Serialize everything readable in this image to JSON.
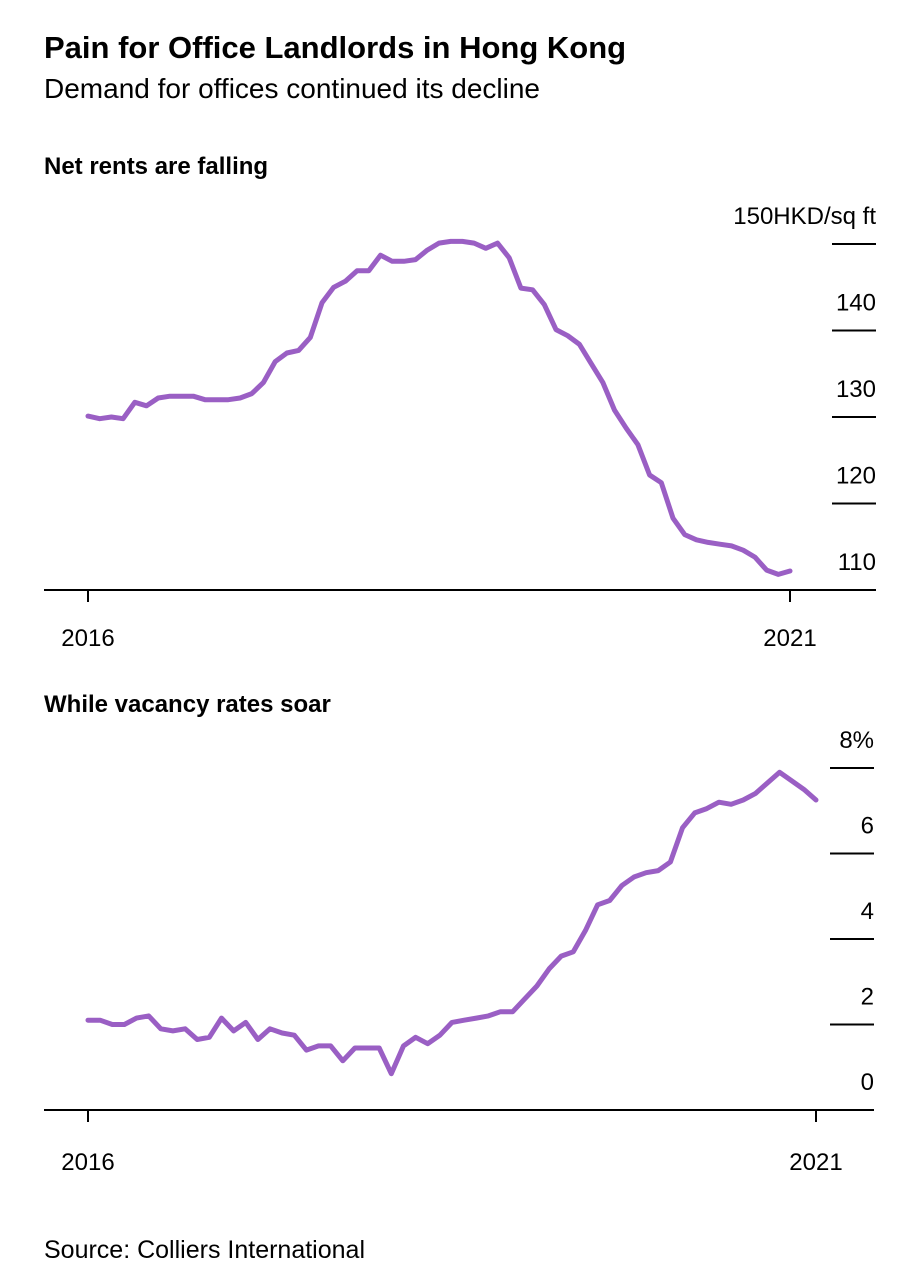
{
  "title": "Pain for Office Landlords in Hong Kong",
  "subtitle": "Demand for offices continued its decline",
  "source": "Source: Colliers International",
  "chart_data": [
    {
      "type": "line",
      "title": "Net rents are falling",
      "color": "#9a5fc4",
      "categories": [
        "2016",
        null,
        null,
        null,
        null,
        null,
        null,
        null,
        null,
        null,
        null,
        null,
        null,
        null,
        null,
        null,
        null,
        null,
        null,
        null,
        null,
        null,
        null,
        null,
        null,
        null,
        null,
        null,
        null,
        null,
        null,
        null,
        null,
        null,
        null,
        null,
        null,
        null,
        null,
        null,
        null,
        null,
        null,
        null,
        null,
        null,
        null,
        null,
        null,
        null,
        null,
        null,
        null,
        null,
        null,
        null,
        null,
        null,
        null,
        null,
        "2021"
      ],
      "values": [
        130.1,
        129.8,
        130,
        129.8,
        131.7,
        131.3,
        132.2,
        132.4,
        132.4,
        132.4,
        132,
        132,
        132,
        132.2,
        132.7,
        134,
        136.4,
        137.4,
        137.7,
        139.2,
        143.2,
        145,
        145.7,
        146.9,
        146.9,
        148.7,
        148,
        148,
        148.2,
        149.3,
        150.1,
        150.3,
        150.3,
        150.1,
        149.5,
        150.1,
        148.4,
        144.9,
        144.7,
        143,
        140.1,
        139.4,
        138.4,
        136.2,
        134,
        130.8,
        128.7,
        126.8,
        123.3,
        122.4,
        118.3,
        116.4,
        115.8,
        115.5,
        115.3,
        115.1,
        114.6,
        113.8,
        112.3,
        111.8,
        112.2
      ],
      "ylim": [
        110,
        152
      ],
      "yticks": [
        110,
        120,
        130,
        140,
        {
          "value": 150,
          "label": "150HKD/sq ft"
        }
      ]
    },
    {
      "type": "line",
      "title": "While vacancy rates soar",
      "color": "#9a5fc4",
      "categories": [
        "2016",
        null,
        null,
        null,
        null,
        null,
        null,
        null,
        null,
        null,
        null,
        null,
        null,
        null,
        null,
        null,
        null,
        null,
        null,
        null,
        null,
        null,
        null,
        null,
        null,
        null,
        null,
        null,
        null,
        null,
        null,
        null,
        null,
        null,
        null,
        null,
        null,
        null,
        null,
        null,
        null,
        null,
        null,
        null,
        null,
        null,
        null,
        null,
        null,
        null,
        null,
        null,
        null,
        null,
        null,
        null,
        null,
        null,
        null,
        null,
        "2021"
      ],
      "values": [
        2.1,
        2.1,
        2.0,
        2.0,
        2.15,
        2.2,
        1.9,
        1.85,
        1.9,
        1.65,
        1.7,
        2.15,
        1.85,
        2.05,
        1.65,
        1.9,
        1.8,
        1.75,
        1.4,
        1.5,
        1.5,
        1.15,
        1.45,
        1.45,
        1.45,
        0.85,
        1.5,
        1.7,
        1.55,
        1.75,
        2.05,
        2.1,
        2.15,
        2.2,
        2.3,
        2.3,
        2.6,
        2.9,
        3.3,
        3.6,
        3.7,
        4.2,
        4.8,
        4.9,
        5.25,
        5.45,
        5.55,
        5.6,
        5.8,
        6.6,
        6.95,
        7.05,
        7.2,
        7.15,
        7.25,
        7.4,
        7.65,
        7.9,
        7.7,
        7.5,
        7.25
      ],
      "ylim": [
        0,
        8.5
      ],
      "yticks": [
        0,
        2,
        4,
        6,
        {
          "value": 8,
          "label": "8%"
        }
      ]
    }
  ]
}
